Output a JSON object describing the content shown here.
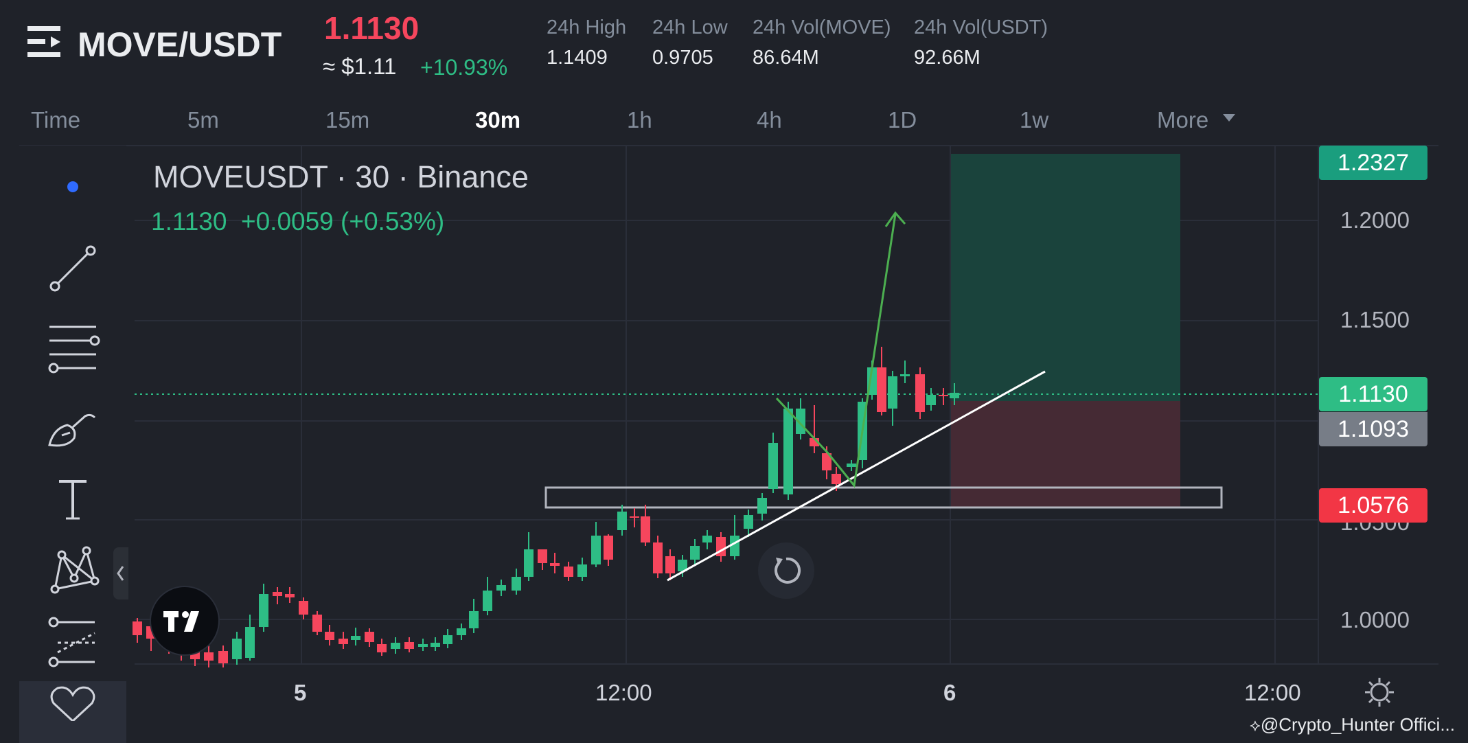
{
  "header": {
    "pair": "MOVE/USDT",
    "last_price": "1.1130",
    "approx_usd": "≈ $1.11",
    "change_pct": "+10.93%",
    "stats": [
      {
        "label": "24h High",
        "value": "1.1409"
      },
      {
        "label": "24h Low",
        "value": "0.9705"
      },
      {
        "label": "24h Vol(MOVE)",
        "value": "86.64M"
      },
      {
        "label": "24h Vol(USDT)",
        "value": "92.66M"
      }
    ]
  },
  "tabs": [
    {
      "label": "Time",
      "active": false
    },
    {
      "label": "5m",
      "active": false
    },
    {
      "label": "15m",
      "active": false
    },
    {
      "label": "30m",
      "active": true
    },
    {
      "label": "1h",
      "active": false
    },
    {
      "label": "4h",
      "active": false
    },
    {
      "label": "1D",
      "active": false
    },
    {
      "label": "1w",
      "active": false
    },
    {
      "label": "More",
      "active": false
    }
  ],
  "toolbar": {
    "icons": [
      "dot-icon",
      "trendline-icon",
      "horizontal-lines-icon",
      "brush-icon",
      "text-icon",
      "pattern-icon",
      "forecast-icon",
      "heart-icon"
    ]
  },
  "chart": {
    "title": "MOVEUSDT · 30 · Binance",
    "ohlc_line": "1.1130  +0.0059 (+0.53%)",
    "price_axis": [
      "1.2000",
      "1.1500",
      "1.0000"
    ],
    "price_axis_hidden": "1.0500",
    "time_axis": [
      "5",
      "12:00",
      "6",
      "12:00"
    ],
    "tags": {
      "target": "1.2327",
      "current": "1.1130",
      "previous": "1.1093",
      "stop": "1.0576"
    },
    "colors": {
      "up": "#2ebd85",
      "down": "#f6465d",
      "bg": "#1f2229",
      "grid": "#2a2e39"
    }
  },
  "watermark": "@Crypto_Hunter Offici..."
}
